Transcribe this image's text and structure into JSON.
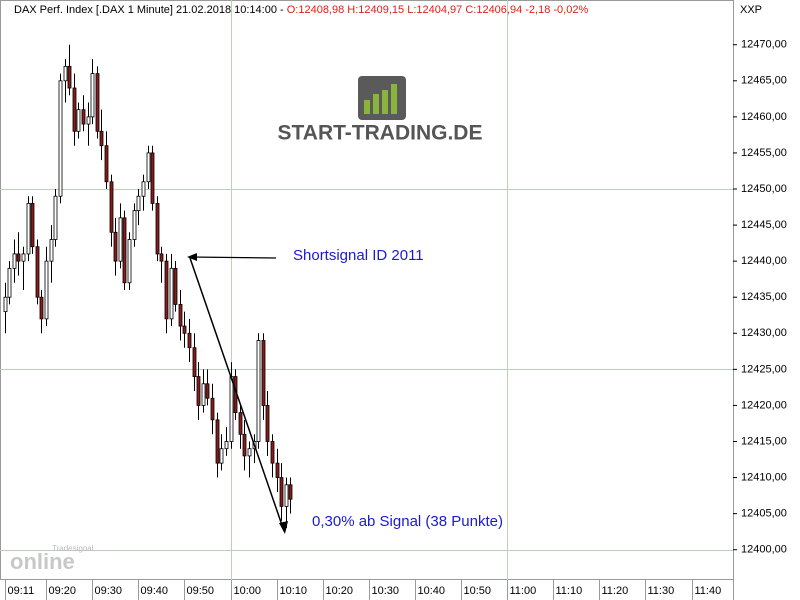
{
  "chart_data": {
    "type": "candlestick",
    "title": "DAX Perf. Index [.DAX  1 Minute] 21.02.2018 10:14:00 -",
    "subtitle": "O:12408,98 H:12409,15 L:12404,97 C:12406,94 -2,18 -0,02%",
    "axis_label": "XXP",
    "x": [
      "09:11",
      "09:12",
      "09:13",
      "09:14",
      "09:15",
      "09:16",
      "09:17",
      "09:18",
      "09:19",
      "09:20",
      "09:21",
      "09:22",
      "09:23",
      "09:24",
      "09:25",
      "09:26",
      "09:27",
      "09:28",
      "09:29",
      "09:30",
      "09:31",
      "09:32",
      "09:33",
      "09:34",
      "09:35",
      "09:36",
      "09:37",
      "09:38",
      "09:39",
      "09:40",
      "09:41",
      "09:42",
      "09:43",
      "09:44",
      "09:45",
      "09:46",
      "09:47",
      "09:48",
      "09:49",
      "09:50",
      "09:51",
      "09:52",
      "09:53",
      "09:54",
      "09:55",
      "09:56",
      "09:57",
      "09:58",
      "09:59",
      "10:00",
      "10:01",
      "10:02",
      "10:03",
      "10:04",
      "10:05",
      "10:06",
      "10:07",
      "10:08",
      "10:09",
      "10:10",
      "10:11",
      "10:12",
      "10:13"
    ],
    "open": [
      12433,
      12435,
      12439,
      12441,
      12440,
      12441,
      12448,
      12442,
      12435,
      12432,
      12440,
      12443,
      12449,
      12465,
      12467,
      12464,
      12458,
      12461,
      12459,
      12460,
      12466,
      12458,
      12456,
      12451,
      12444,
      12440,
      12446,
      12437,
      12443,
      12447,
      12449,
      12451,
      12455,
      12448,
      12441,
      12440,
      12432,
      12439,
      12434,
      12431,
      12430,
      12428,
      12424,
      12420,
      12423,
      12421,
      12418,
      12412,
      12414,
      12415,
      12424,
      12419,
      12416,
      12413,
      12414,
      12415,
      12429,
      12420,
      12415,
      12412,
      12410,
      12406,
      12409
    ],
    "high": [
      12437,
      12440,
      12443,
      12444,
      12442,
      12449,
      12449,
      12443,
      12436,
      12442,
      12445,
      12450,
      12466,
      12468,
      12470,
      12466,
      12462,
      12463,
      12462,
      12468,
      12467,
      12461,
      12458,
      12452,
      12446,
      12448,
      12447,
      12444,
      12448,
      12450,
      12452,
      12456,
      12456,
      12449,
      12442,
      12441,
      12441,
      12440,
      12436,
      12433,
      12432,
      12430,
      12426,
      12425,
      12425,
      12423,
      12419,
      12416,
      12417,
      12426,
      12425,
      12420,
      12418,
      12415,
      12416,
      12430,
      12430,
      12422,
      12416,
      12414,
      12412,
      12410,
      12410
    ],
    "low": [
      12430,
      12434,
      12437,
      12438,
      12436,
      12440,
      12441,
      12434,
      12430,
      12431,
      12437,
      12442,
      12448,
      12462,
      12463,
      12456,
      12457,
      12458,
      12456,
      12459,
      12457,
      12454,
      12450,
      12442,
      12438,
      12439,
      12436,
      12436,
      12442,
      12445,
      12447,
      12450,
      12447,
      12440,
      12437,
      12430,
      12431,
      12433,
      12429,
      12428,
      12426,
      12422,
      12418,
      12419,
      12420,
      12416,
      12410,
      12411,
      12413,
      12414,
      12418,
      12414,
      12411,
      12410,
      12412,
      12414,
      12418,
      12413,
      12410,
      12408,
      12404,
      12403,
      12405
    ],
    "close": [
      12435,
      12439,
      12441,
      12440,
      12441,
      12448,
      12442,
      12435,
      12432,
      12440,
      12443,
      12449,
      12465,
      12467,
      12464,
      12458,
      12461,
      12459,
      12460,
      12466,
      12458,
      12456,
      12451,
      12444,
      12440,
      12446,
      12437,
      12443,
      12447,
      12449,
      12451,
      12455,
      12448,
      12441,
      12440,
      12432,
      12439,
      12434,
      12431,
      12430,
      12428,
      12424,
      12420,
      12423,
      12421,
      12418,
      12412,
      12414,
      12415,
      12424,
      12419,
      12416,
      12413,
      12414,
      12415,
      12429,
      12420,
      12415,
      12412,
      12410,
      12406,
      12409,
      12407
    ],
    "colors": {
      "up": "#ffffff",
      "down": "#8b1a1a",
      "outline": "#000000"
    },
    "xlim": [
      "09:10",
      "11:49"
    ],
    "xticks": [
      "09:11",
      "09:20",
      "09:30",
      "09:40",
      "09:50",
      "10:00",
      "10:10",
      "10:20",
      "10:30",
      "10:40",
      "10:50",
      "11:00",
      "11:10",
      "11:20",
      "11:30",
      "11:40"
    ],
    "xgrid": [
      "10:00",
      "11:00"
    ],
    "ylim": [
      12395.8,
      12476.2
    ],
    "yticks": [
      {
        "value": 12400,
        "label": "12400,00"
      },
      {
        "value": 12405,
        "label": "12405,00"
      },
      {
        "value": 12410,
        "label": "12410,00"
      },
      {
        "value": 12415,
        "label": "12415,00"
      },
      {
        "value": 12420,
        "label": "12420,00"
      },
      {
        "value": 12425,
        "label": "12425,00"
      },
      {
        "value": 12430,
        "label": "12430,00"
      },
      {
        "value": 12435,
        "label": "12435,00"
      },
      {
        "value": 12440,
        "label": "12440,00"
      },
      {
        "value": 12445,
        "label": "12445,00"
      },
      {
        "value": 12450,
        "label": "12450,00"
      },
      {
        "value": 12455,
        "label": "12455,00"
      },
      {
        "value": 12460,
        "label": "12460,00"
      },
      {
        "value": 12465,
        "label": "12465,00"
      },
      {
        "value": 12470,
        "label": "12470,00"
      }
    ],
    "ygrid": [
      12400,
      12425,
      12450
    ],
    "annotations": [
      "Shortsignal ID 2011",
      "0,30% ab Signal (38 Punkte)"
    ]
  },
  "branding": {
    "logo": "START-TRADING.DE",
    "watermark_small": "Tradesignal",
    "watermark": "online"
  }
}
